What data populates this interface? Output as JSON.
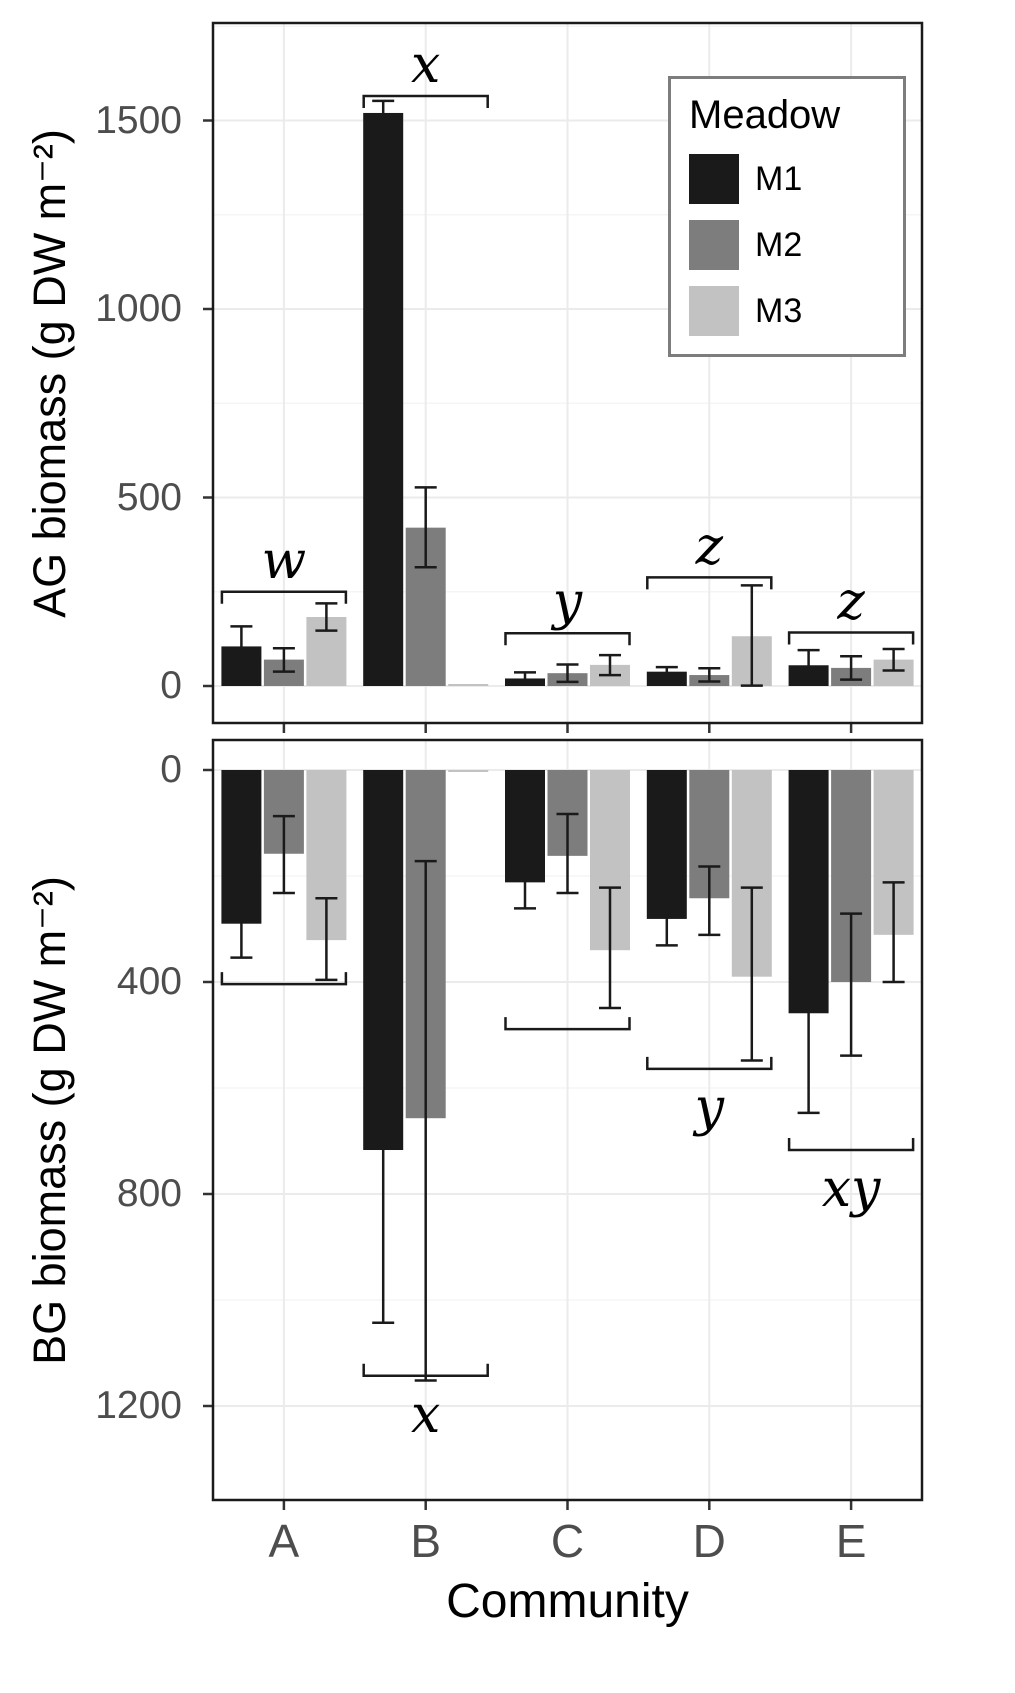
{
  "colors": {
    "m1": "#1a1a1a",
    "m2": "#7d7d7d",
    "m3": "#c2c2c2",
    "axis_text": "#4d4d4d",
    "grid_major": "#ebebeb",
    "grid_minor": "#f5f5f5",
    "panel_border": "#1a1a1a",
    "error_bar": "#1a1a1a",
    "bracket": "#1a1a1a"
  },
  "legend": {
    "title": "Meadow",
    "entries": [
      {
        "label": "M1",
        "color": "#1a1a1a"
      },
      {
        "label": "M2",
        "color": "#7d7d7d"
      },
      {
        "label": "M3",
        "color": "#c2c2c2"
      }
    ]
  },
  "x_axis": {
    "title": "Community",
    "categories": [
      "A",
      "B",
      "C",
      "D",
      "E"
    ]
  },
  "chart_data": [
    {
      "type": "bar",
      "panel": "top",
      "title": "",
      "ylabel": "AG biomass (g DW m⁻²)",
      "xlabel": "Community",
      "grid": true,
      "legend_position": "top-right",
      "categories": [
        "A",
        "B",
        "C",
        "D",
        "E"
      ],
      "yticks": [
        0,
        500,
        1000,
        1500
      ],
      "ylim": [
        0,
        1760
      ],
      "series": [
        {
          "name": "M1",
          "values": [
            105,
            1520,
            20,
            38,
            55
          ],
          "err_low": [
            55,
            1487,
            6,
            25,
            13
          ],
          "err_high": [
            158,
            1552,
            36,
            50,
            95
          ]
        },
        {
          "name": "M2",
          "values": [
            70,
            420,
            34,
            29,
            48
          ],
          "err_low": [
            38,
            315,
            11,
            12,
            17
          ],
          "err_high": [
            100,
            527,
            57,
            47,
            79
          ]
        },
        {
          "name": "M3",
          "values": [
            183,
            2,
            56,
            132,
            70
          ],
          "err_low": [
            147,
            null,
            29,
            1,
            41
          ],
          "err_high": [
            219,
            null,
            82,
            267,
            98
          ]
        }
      ],
      "sig_brackets": [
        {
          "category": "A",
          "label": "w",
          "y": 250
        },
        {
          "category": "B",
          "label": "x",
          "y": 1565
        },
        {
          "category": "C",
          "label": "y",
          "y": 140
        },
        {
          "category": "D",
          "label": "z",
          "y": 288
        },
        {
          "category": "E",
          "label": "z",
          "y": 142
        }
      ]
    },
    {
      "type": "bar",
      "panel": "bottom",
      "title": "",
      "inverted_axis": true,
      "ylabel": "BG biomass (g DW m⁻²)",
      "xlabel": "Community",
      "grid": true,
      "categories": [
        "A",
        "B",
        "C",
        "D",
        "E"
      ],
      "yticks": [
        0,
        400,
        800,
        1200
      ],
      "ylim": [
        0,
        1380
      ],
      "series": [
        {
          "name": "M1",
          "values": [
            290,
            717,
            212,
            281,
            459
          ],
          "err_low": [
            222,
            390,
            162,
            222,
            251
          ],
          "err_high": [
            354,
            1043,
            261,
            331,
            647
          ]
        },
        {
          "name": "M2",
          "values": [
            158,
            657,
            162,
            242,
            400
          ],
          "err_low": [
            87,
            172,
            83,
            182,
            271
          ],
          "err_high": [
            232,
            1152,
            232,
            311,
            539
          ]
        },
        {
          "name": "M3",
          "values": [
            321,
            3,
            340,
            390,
            311
          ],
          "err_low": [
            242,
            null,
            222,
            222,
            212
          ],
          "err_high": [
            396,
            null,
            449,
            548,
            400
          ]
        }
      ],
      "sig_brackets": [
        {
          "category": "A",
          "label": "",
          "y": 404
        },
        {
          "category": "B",
          "label": "x",
          "y": 1143
        },
        {
          "category": "C",
          "label": "",
          "y": 489
        },
        {
          "category": "D",
          "label": "y",
          "y": 564
        },
        {
          "category": "E",
          "label": "xy",
          "y": 717
        }
      ]
    }
  ]
}
